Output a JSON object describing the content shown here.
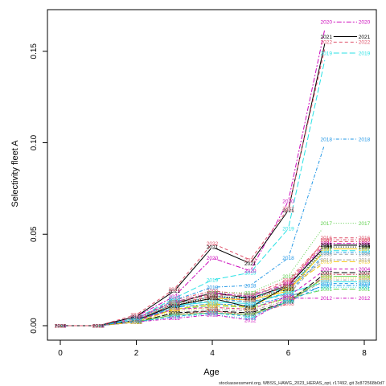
{
  "footer": "stockassessment.org, WBSS_HAWG_2023_HERAS_opt, r17492, git 3c872568b0d7",
  "chart_data": {
    "type": "line",
    "xlabel": "Age",
    "ylabel": "Selectivity fleet A",
    "xlim": [
      0,
      8
    ],
    "ylim": [
      0,
      0.165
    ],
    "xticks": [
      0,
      2,
      4,
      6,
      8
    ],
    "yticks": [
      0.0,
      0.05,
      0.1,
      0.15
    ],
    "ytick_labels": [
      "0.00",
      "0.05",
      "0.10",
      "0.15"
    ],
    "grid": false,
    "x": [
      0,
      1,
      2,
      3,
      4,
      5,
      6,
      7,
      8
    ],
    "series": [
      {
        "name": "1991",
        "color": "#000000",
        "dash": "solid",
        "values": [
          0,
          0,
          0.003,
          0.012,
          0.018,
          0.015,
          0.022,
          0.044,
          0.044
        ]
      },
      {
        "name": "1992",
        "color": "#DF536B",
        "dash": "dashed",
        "values": [
          0,
          0,
          0.004,
          0.013,
          0.017,
          0.016,
          0.024,
          0.046,
          0.046
        ]
      },
      {
        "name": "1993",
        "color": "#61D04F",
        "dash": "dotted",
        "values": [
          0,
          0,
          0.003,
          0.011,
          0.016,
          0.014,
          0.02,
          0.043,
          0.043
        ]
      },
      {
        "name": "1994",
        "color": "#2297E6",
        "dash": "dotdash",
        "values": [
          0,
          0,
          0.003,
          0.01,
          0.015,
          0.013,
          0.018,
          0.04,
          0.04
        ]
      },
      {
        "name": "1995",
        "color": "#28E2E5",
        "dash": "longdash",
        "values": [
          0,
          0,
          0.003,
          0.012,
          0.016,
          0.015,
          0.021,
          0.041,
          0.041
        ]
      },
      {
        "name": "1996",
        "color": "#CD0BBC",
        "dash": "twodash",
        "values": [
          0,
          0,
          0.004,
          0.013,
          0.018,
          0.016,
          0.023,
          0.045,
          0.045
        ]
      },
      {
        "name": "1997",
        "color": "#F5C710",
        "dash": "solid",
        "values": [
          0,
          0,
          0.003,
          0.011,
          0.015,
          0.014,
          0.019,
          0.042,
          0.042
        ]
      },
      {
        "name": "1998",
        "color": "#9E9E9E",
        "dash": "dashed",
        "values": [
          0,
          0,
          0.002,
          0.01,
          0.014,
          0.013,
          0.017,
          0.039,
          0.039
        ]
      },
      {
        "name": "1999",
        "color": "#000000",
        "dash": "dotted",
        "values": [
          0,
          0,
          0.003,
          0.011,
          0.016,
          0.015,
          0.02,
          0.043,
          0.043
        ]
      },
      {
        "name": "2000",
        "color": "#DF536B",
        "dash": "dotdash",
        "values": [
          0,
          0,
          0.004,
          0.014,
          0.019,
          0.017,
          0.025,
          0.047,
          0.047
        ]
      },
      {
        "name": "2001",
        "color": "#61D04F",
        "dash": "longdash",
        "values": [
          0,
          0,
          0.003,
          0.009,
          0.011,
          0.01,
          0.015,
          0.02,
          0.02
        ]
      },
      {
        "name": "2002",
        "color": "#2297E6",
        "dash": "twodash",
        "values": [
          0,
          0,
          0.003,
          0.01,
          0.012,
          0.011,
          0.016,
          0.022,
          0.022
        ]
      },
      {
        "name": "2003",
        "color": "#28E2E5",
        "dash": "solid",
        "values": [
          0,
          0,
          0.003,
          0.011,
          0.013,
          0.012,
          0.018,
          0.024,
          0.024
        ]
      },
      {
        "name": "2004",
        "color": "#CD0BBC",
        "dash": "dashed",
        "values": [
          0,
          0,
          0.003,
          0.009,
          0.01,
          0.009,
          0.016,
          0.031,
          0.031
        ]
      },
      {
        "name": "2005",
        "color": "#F5C710",
        "dash": "dotted",
        "values": [
          0,
          0,
          0.002,
          0.008,
          0.01,
          0.009,
          0.015,
          0.026,
          0.026
        ]
      },
      {
        "name": "2006",
        "color": "#9E9E9E",
        "dash": "dotdash",
        "values": [
          0,
          0,
          0.002,
          0.007,
          0.009,
          0.008,
          0.014,
          0.025,
          0.025
        ]
      },
      {
        "name": "2007",
        "color": "#000000",
        "dash": "longdash",
        "values": [
          0,
          0,
          0.002,
          0.007,
          0.008,
          0.007,
          0.013,
          0.029,
          0.029
        ]
      },
      {
        "name": "2008",
        "color": "#DF536B",
        "dash": "twodash",
        "values": [
          0,
          0,
          0.002,
          0.006,
          0.008,
          0.006,
          0.012,
          0.028,
          0.028
        ]
      },
      {
        "name": "2009",
        "color": "#61D04F",
        "dash": "solid",
        "values": [
          0,
          0,
          0.002,
          0.006,
          0.007,
          0.006,
          0.013,
          0.027,
          0.027
        ]
      },
      {
        "name": "2010",
        "color": "#2297E6",
        "dash": "dashed",
        "values": [
          0,
          0,
          0.002,
          0.005,
          0.007,
          0.005,
          0.013,
          0.023,
          0.023
        ]
      },
      {
        "name": "2011",
        "color": "#28E2E5",
        "dash": "dotted",
        "values": [
          0,
          0,
          0.002,
          0.005,
          0.006,
          0.004,
          0.014,
          0.021,
          0.021
        ]
      },
      {
        "name": "2012",
        "color": "#CD0BBC",
        "dash": "dotdash",
        "values": [
          0,
          0,
          0.002,
          0.004,
          0.006,
          0.003,
          0.015,
          0.015,
          0.015
        ]
      },
      {
        "name": "2013",
        "color": "#F5C710",
        "dash": "longdash",
        "values": [
          0,
          0,
          0.002,
          0.009,
          0.012,
          0.01,
          0.021,
          0.035,
          0.035
        ]
      },
      {
        "name": "2014",
        "color": "#9E9E9E",
        "dash": "twodash",
        "values": [
          0,
          0,
          0.003,
          0.012,
          0.016,
          0.017,
          0.022,
          0.036,
          0.036
        ]
      },
      {
        "name": "2015",
        "color": "#000000",
        "dash": "solid",
        "values": [
          0,
          0,
          0.003,
          0.011,
          0.015,
          0.01,
          0.022,
          0.044,
          0.044
        ]
      },
      {
        "name": "2016",
        "color": "#DF536B",
        "dash": "dashed",
        "values": [
          0,
          0,
          0.003,
          0.012,
          0.016,
          0.014,
          0.022,
          0.048,
          0.048
        ]
      },
      {
        "name": "2017",
        "color": "#61D04F",
        "dash": "dotted",
        "values": [
          0,
          0,
          0.003,
          0.013,
          0.018,
          0.018,
          0.027,
          0.056,
          0.056
        ]
      },
      {
        "name": "2018",
        "color": "#2297E6",
        "dash": "dotdash",
        "values": [
          0,
          0,
          0.003,
          0.014,
          0.021,
          0.022,
          0.037,
          0.102,
          0.102
        ]
      },
      {
        "name": "2019",
        "color": "#28E2E5",
        "dash": "longdash",
        "values": [
          0,
          0,
          0.004,
          0.015,
          0.025,
          0.029,
          0.053,
          0.149,
          0.149
        ]
      },
      {
        "name": "2020",
        "color": "#CD0BBC",
        "dash": "twodash",
        "values": [
          0,
          0,
          0.005,
          0.016,
          0.037,
          0.03,
          0.068,
          0.166,
          0.166
        ]
      },
      {
        "name": "2021",
        "color": "#000000",
        "dash": "solid",
        "values": [
          0,
          0,
          0.005,
          0.019,
          0.043,
          0.034,
          0.063,
          0.158,
          0.158
        ]
      },
      {
        "name": "2022",
        "color": "#DF536B",
        "dash": "dashed",
        "values": [
          0,
          0,
          0.006,
          0.02,
          0.045,
          0.036,
          0.064,
          0.155,
          0.155
        ]
      }
    ]
  }
}
